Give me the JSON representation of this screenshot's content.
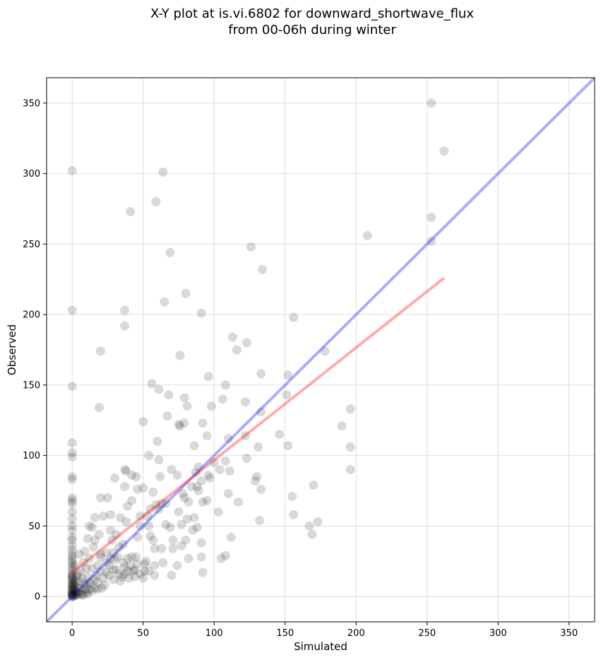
{
  "chart_data": {
    "type": "scatter",
    "title_lines": [
      "X-Y plot at is.vi.6802 for downward_shortwave_flux",
      "from 00-06h during winter"
    ],
    "xlabel": "Simulated",
    "ylabel": "Observed",
    "xlim": [
      -18,
      368
    ],
    "ylim": [
      -18,
      368
    ],
    "xticks": [
      0,
      50,
      100,
      150,
      200,
      250,
      300,
      350
    ],
    "yticks": [
      0,
      50,
      100,
      150,
      200,
      250,
      300,
      350
    ],
    "grid": true,
    "point_color": "#000000",
    "point_alpha": 0.15,
    "identity_line": {
      "color": "#0000ff",
      "alpha": 0.33,
      "from": [
        -18,
        -18
      ],
      "to": [
        368,
        368
      ]
    },
    "regression_line": {
      "color": "#ff0000",
      "alpha": 0.33,
      "from": [
        0,
        17
      ],
      "to": [
        262,
        226
      ]
    },
    "points": [
      [
        253,
        350
      ],
      [
        262,
        316
      ],
      [
        0,
        302
      ],
      [
        64,
        301
      ],
      [
        59,
        280
      ],
      [
        41,
        273
      ],
      [
        253,
        269
      ],
      [
        208,
        256
      ],
      [
        253,
        252
      ],
      [
        126,
        248
      ],
      [
        69,
        244
      ],
      [
        134,
        232
      ],
      [
        80,
        215
      ],
      [
        65,
        209
      ],
      [
        0,
        203
      ],
      [
        37,
        203
      ],
      [
        91,
        201
      ],
      [
        156,
        198
      ],
      [
        37,
        192
      ],
      [
        113,
        184
      ],
      [
        123,
        180
      ],
      [
        116,
        175
      ],
      [
        178,
        174
      ],
      [
        20,
        174
      ],
      [
        76,
        171
      ],
      [
        133,
        158
      ],
      [
        96,
        156
      ],
      [
        152,
        157
      ],
      [
        56,
        151
      ],
      [
        108,
        150
      ],
      [
        61,
        147
      ],
      [
        0,
        149
      ],
      [
        79,
        141
      ],
      [
        106,
        140
      ],
      [
        68,
        143
      ],
      [
        122,
        138
      ],
      [
        19,
        134
      ],
      [
        81,
        135
      ],
      [
        98,
        135
      ],
      [
        196,
        133
      ],
      [
        133,
        131
      ],
      [
        67,
        128
      ],
      [
        151,
        143
      ],
      [
        190,
        121
      ],
      [
        146,
        115
      ],
      [
        50,
        124
      ],
      [
        92,
        123
      ],
      [
        76,
        121
      ],
      [
        79,
        123
      ],
      [
        75,
        122
      ],
      [
        95,
        114
      ],
      [
        110,
        112
      ],
      [
        122,
        114
      ],
      [
        152,
        107
      ],
      [
        60,
        110
      ],
      [
        0,
        109
      ],
      [
        196,
        106
      ],
      [
        86,
        107
      ],
      [
        131,
        106
      ],
      [
        0,
        102
      ],
      [
        0,
        99
      ],
      [
        54,
        100
      ],
      [
        61,
        97
      ],
      [
        108,
        96
      ],
      [
        100,
        95
      ],
      [
        123,
        98
      ],
      [
        196,
        90
      ],
      [
        37,
        90
      ],
      [
        38,
        89
      ],
      [
        89,
        92
      ],
      [
        70,
        90
      ],
      [
        104,
        90
      ],
      [
        111,
        89
      ],
      [
        87,
        88
      ],
      [
        0,
        85
      ],
      [
        0,
        83
      ],
      [
        45,
        85
      ],
      [
        42,
        86
      ],
      [
        30,
        84
      ],
      [
        74,
        86
      ],
      [
        62,
        85
      ],
      [
        130,
        85
      ],
      [
        97,
        84
      ],
      [
        91,
        82
      ],
      [
        37,
        78
      ],
      [
        96,
        86
      ],
      [
        129,
        82
      ],
      [
        170,
        79
      ],
      [
        46,
        76
      ],
      [
        57,
        74
      ],
      [
        50,
        77
      ],
      [
        133,
        76
      ],
      [
        110,
        73
      ],
      [
        84,
        78
      ],
      [
        79,
        70
      ],
      [
        88,
        78
      ],
      [
        155,
        71
      ],
      [
        0,
        70
      ],
      [
        0,
        68
      ],
      [
        0,
        66
      ],
      [
        39,
        64
      ],
      [
        117,
        67
      ],
      [
        20,
        70
      ],
      [
        25,
        70
      ],
      [
        55,
        62
      ],
      [
        63,
        66
      ],
      [
        61,
        62
      ],
      [
        66,
        66
      ],
      [
        82,
        67
      ],
      [
        95,
        68
      ],
      [
        78,
        73
      ],
      [
        92,
        67
      ],
      [
        42,
        68
      ],
      [
        89,
        75
      ],
      [
        103,
        60
      ],
      [
        156,
        58
      ],
      [
        0,
        60
      ],
      [
        59,
        65
      ],
      [
        53,
        57
      ],
      [
        48,
        57
      ],
      [
        34,
        56
      ],
      [
        27,
        58
      ],
      [
        16,
        56
      ],
      [
        22,
        57
      ],
      [
        75,
        60
      ],
      [
        132,
        54
      ],
      [
        86,
        56
      ],
      [
        173,
        53
      ],
      [
        81,
        55
      ],
      [
        167,
        50
      ],
      [
        0,
        50
      ],
      [
        0,
        47
      ],
      [
        14,
        49
      ],
      [
        19,
        44
      ],
      [
        38,
        53
      ],
      [
        54,
        50
      ],
      [
        66,
        51
      ],
      [
        69,
        49
      ],
      [
        77,
        51
      ],
      [
        85,
        47
      ],
      [
        88,
        49
      ],
      [
        48,
        50
      ],
      [
        27,
        47
      ],
      [
        12,
        50
      ],
      [
        169,
        44
      ],
      [
        0,
        40
      ],
      [
        11,
        41
      ],
      [
        16,
        40
      ],
      [
        28,
        40
      ],
      [
        36,
        37
      ],
      [
        46,
        42
      ],
      [
        55,
        43
      ],
      [
        57,
        40
      ],
      [
        71,
        40
      ],
      [
        80,
        40
      ],
      [
        77,
        36
      ],
      [
        91,
        38
      ],
      [
        112,
        42
      ],
      [
        71,
        34
      ],
      [
        63,
        34
      ],
      [
        58,
        34
      ],
      [
        0,
        30
      ],
      [
        0,
        28
      ],
      [
        5,
        30
      ],
      [
        9,
        32
      ],
      [
        20,
        30
      ],
      [
        29,
        31
      ],
      [
        32,
        28
      ],
      [
        39,
        27
      ],
      [
        42,
        28
      ],
      [
        27,
        27
      ],
      [
        12,
        27
      ],
      [
        18,
        22
      ],
      [
        24,
        24
      ],
      [
        36,
        24
      ],
      [
        41,
        22
      ],
      [
        46,
        23
      ],
      [
        51,
        23
      ],
      [
        58,
        22
      ],
      [
        64,
        24
      ],
      [
        74,
        22
      ],
      [
        82,
        27
      ],
      [
        91,
        28
      ],
      [
        105,
        27
      ],
      [
        108,
        29
      ],
      [
        0,
        22
      ],
      [
        0,
        20
      ],
      [
        2,
        22
      ],
      [
        8,
        24
      ],
      [
        14,
        20
      ],
      [
        20,
        18
      ],
      [
        31,
        19
      ],
      [
        39,
        18
      ],
      [
        43,
        18
      ],
      [
        51,
        18
      ],
      [
        0,
        18
      ],
      [
        0,
        15
      ],
      [
        3,
        14
      ],
      [
        7,
        13
      ],
      [
        11,
        14
      ],
      [
        17,
        15
      ],
      [
        22,
        13
      ],
      [
        26,
        15
      ],
      [
        33,
        16
      ],
      [
        37,
        16
      ],
      [
        44,
        14
      ],
      [
        50,
        13
      ],
      [
        58,
        15
      ],
      [
        70,
        15
      ],
      [
        92,
        17
      ],
      [
        0,
        13
      ],
      [
        0,
        12
      ],
      [
        1,
        11
      ],
      [
        2,
        10
      ],
      [
        5,
        11
      ],
      [
        8,
        9
      ],
      [
        10,
        8
      ],
      [
        13,
        9
      ],
      [
        18,
        10
      ],
      [
        23,
        8
      ],
      [
        29,
        12
      ],
      [
        34,
        11
      ],
      [
        0,
        10
      ],
      [
        0,
        9
      ],
      [
        1,
        8
      ],
      [
        2,
        7
      ],
      [
        4,
        6
      ],
      [
        6,
        6
      ],
      [
        9,
        5
      ],
      [
        12,
        5
      ],
      [
        16,
        6
      ],
      [
        21,
        6
      ],
      [
        0,
        8
      ],
      [
        0,
        7
      ],
      [
        0,
        6
      ],
      [
        0,
        5
      ],
      [
        1,
        5
      ],
      [
        2,
        4
      ],
      [
        3,
        3
      ],
      [
        5,
        3
      ],
      [
        7,
        2
      ],
      [
        10,
        3
      ],
      [
        14,
        4
      ],
      [
        18,
        5
      ],
      [
        0,
        4
      ],
      [
        0,
        3
      ],
      [
        0,
        2
      ],
      [
        0,
        1
      ],
      [
        0,
        0
      ],
      [
        1,
        1
      ],
      [
        1,
        0
      ],
      [
        2,
        1
      ],
      [
        3,
        1
      ],
      [
        4,
        2
      ],
      [
        6,
        1
      ],
      [
        8,
        1
      ],
      [
        11,
        2
      ],
      [
        0,
        0
      ],
      [
        0,
        1
      ],
      [
        0,
        2
      ],
      [
        0,
        36
      ],
      [
        0,
        33
      ],
      [
        0,
        42
      ],
      [
        0,
        26
      ],
      [
        0,
        24
      ],
      [
        0,
        16
      ],
      [
        0,
        14
      ],
      [
        15,
        35
      ],
      [
        24,
        31
      ],
      [
        30,
        26
      ],
      [
        6,
        18
      ],
      [
        10,
        20
      ],
      [
        26,
        22
      ],
      [
        35,
        14
      ],
      [
        40,
        13
      ],
      [
        4,
        16
      ],
      [
        12,
        10
      ],
      [
        16,
        12
      ],
      [
        20,
        28
      ],
      [
        33,
        35
      ],
      [
        45,
        28
      ],
      [
        52,
        25
      ],
      [
        29,
        19
      ],
      [
        24,
        17
      ],
      [
        37,
        21
      ],
      [
        0,
        55
      ],
      [
        31,
        44
      ],
      [
        44,
        19
      ],
      [
        48,
        16
      ],
      [
        54,
        18
      ]
    ]
  }
}
